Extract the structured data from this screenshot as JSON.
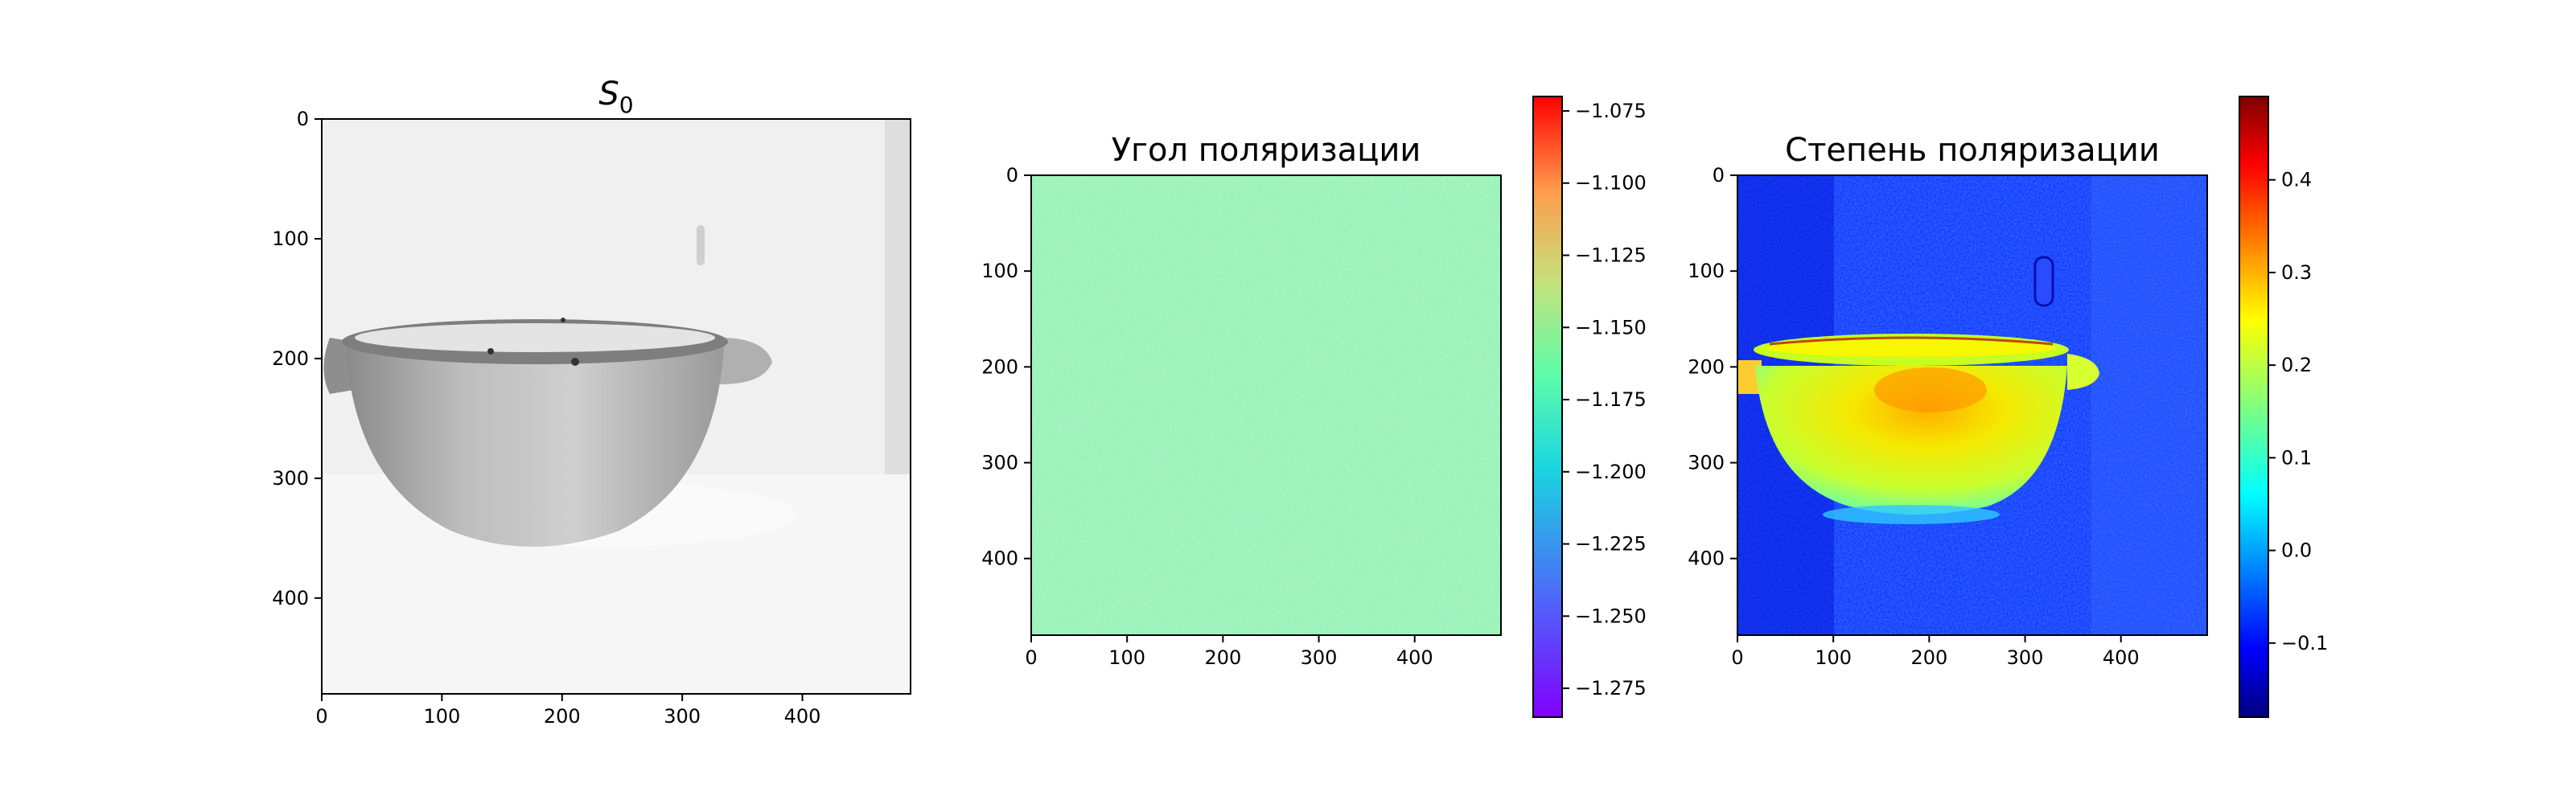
{
  "chart_data": [
    {
      "type": "heatmap",
      "title": "S",
      "title_subscript": "0",
      "colormap": "gray",
      "colorbar": false,
      "xlim": [
        0,
        490
      ],
      "ylim": [
        480,
        0
      ],
      "x_ticks": [
        "0",
        "100",
        "200",
        "300",
        "400"
      ],
      "y_ticks": [
        "0",
        "100",
        "200",
        "300",
        "400"
      ],
      "content": "grayscale image of a ceramic bowl with two side handles"
    },
    {
      "type": "heatmap",
      "title": "Угол поляризации",
      "colormap": "rainbow",
      "colorbar": true,
      "clim": [
        -1.285,
        -1.07
      ],
      "colorbar_ticks": [
        "−1.075",
        "−1.100",
        "−1.125",
        "−1.150",
        "−1.175",
        "−1.200",
        "−1.225",
        "−1.250",
        "−1.275"
      ],
      "xlim": [
        0,
        490
      ],
      "ylim": [
        480,
        0
      ],
      "x_ticks": [
        "0",
        "100",
        "200",
        "300",
        "400"
      ],
      "y_ticks": [
        "0",
        "100",
        "200",
        "300",
        "400"
      ],
      "content": "uniform noise around −1.18"
    },
    {
      "type": "heatmap",
      "title": "Степень поляризации",
      "colormap": "jet",
      "colorbar": true,
      "clim": [
        -0.18,
        0.49
      ],
      "colorbar_ticks": [
        "0.4",
        "0.3",
        "0.2",
        "0.1",
        "0.0",
        "−0.1"
      ],
      "xlim": [
        0,
        490
      ],
      "ylim": [
        480,
        0
      ],
      "x_ticks": [
        "0",
        "100",
        "200",
        "300",
        "400"
      ],
      "y_ticks": [
        "0",
        "100",
        "200",
        "300",
        "400"
      ],
      "content": "bowl highly polarized (~0.2–0.3) on background ~−0.1"
    }
  ]
}
